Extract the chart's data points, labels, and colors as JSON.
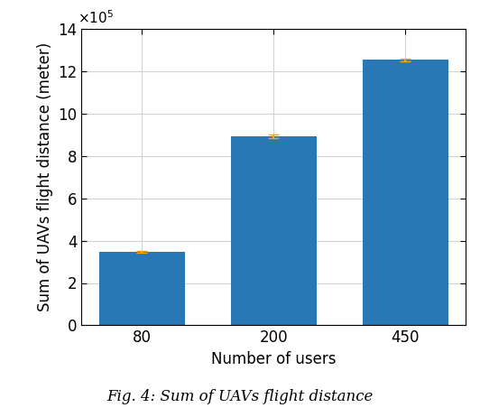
{
  "categories": [
    "80",
    "200",
    "450"
  ],
  "values": [
    347000,
    893000,
    1255000
  ],
  "error_bars": [
    5000,
    8000,
    6000
  ],
  "bar_color": "#2878b5",
  "error_color": "#ffa500",
  "xlabel": "Number of users",
  "ylabel": "Sum of UAVs flight distance (meter)",
  "ylim": [
    0,
    1400000
  ],
  "yticks": [
    0,
    200000,
    400000,
    600000,
    800000,
    1000000,
    1200000,
    1400000
  ],
  "ytick_labels": [
    "0",
    "2",
    "4",
    "6",
    "8",
    "10",
    "12",
    "14"
  ],
  "bar_width": 0.65,
  "grid": true,
  "figsize": [
    5.32,
    4.62
  ],
  "dpi": 100,
  "caption": "Fig. 4: Sum of UAVs flight distance"
}
